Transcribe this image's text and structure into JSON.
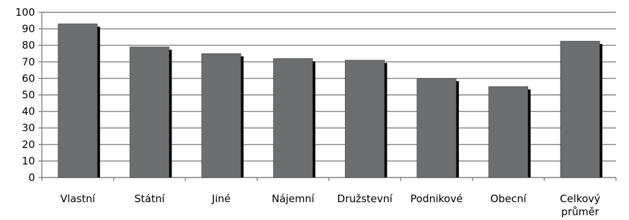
{
  "chart_data": {
    "type": "bar",
    "categories": [
      "Vlastní",
      "Státní",
      "Jiné",
      "Nájemní",
      "Družstevní",
      "Podnikové",
      "Obecní",
      "Celkový průměr"
    ],
    "values": [
      93,
      79,
      75,
      72,
      71,
      60,
      55,
      82.5
    ],
    "ylim": [
      0,
      100
    ],
    "yticks": [
      0,
      10,
      20,
      30,
      40,
      50,
      60,
      70,
      80,
      90,
      100
    ],
    "grid": true,
    "colors": {
      "bar": "#6d6e70",
      "shadow": "#000000",
      "grid": "#7f7f7f",
      "axis": "#7f7f7f"
    }
  }
}
